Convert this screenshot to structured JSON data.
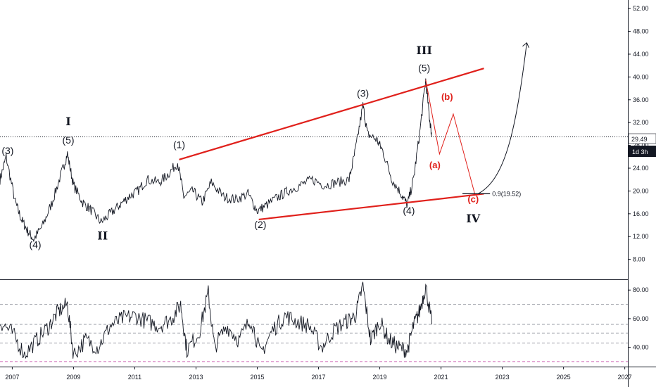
{
  "chart_data": [
    {
      "type": "line",
      "title": "",
      "xlabel": "",
      "ylabel": "",
      "x_ticks": [
        "2007",
        "2009",
        "2011",
        "2013",
        "2015",
        "2017",
        "2019",
        "2021",
        "2023",
        "2025",
        "2027"
      ],
      "xlim": [
        "2006.6",
        "2027.1"
      ],
      "y_ticks": [
        "8.00",
        "12.00",
        "16.00",
        "20.00",
        "24.00",
        "28.00",
        "32.00",
        "36.00",
        "40.00",
        "44.00",
        "48.00",
        "52.00"
      ],
      "ylim": [
        4.5,
        53.5
      ],
      "current_price": "29.49",
      "interval_badge": "1d 3h",
      "price_anchors": [
        {
          "x": 2006.6,
          "y": 22
        },
        {
          "x": 2006.8,
          "y": 26
        },
        {
          "x": 2007.1,
          "y": 18
        },
        {
          "x": 2007.3,
          "y": 15
        },
        {
          "x": 2007.5,
          "y": 13
        },
        {
          "x": 2007.7,
          "y": 11.5
        },
        {
          "x": 2008.0,
          "y": 14
        },
        {
          "x": 2008.3,
          "y": 18
        },
        {
          "x": 2008.6,
          "y": 23
        },
        {
          "x": 2008.8,
          "y": 26.5
        },
        {
          "x": 2009.0,
          "y": 21
        },
        {
          "x": 2009.3,
          "y": 18
        },
        {
          "x": 2009.6,
          "y": 16.5
        },
        {
          "x": 2009.9,
          "y": 14.5
        },
        {
          "x": 2010.2,
          "y": 16
        },
        {
          "x": 2010.5,
          "y": 17.5
        },
        {
          "x": 2010.8,
          "y": 19
        },
        {
          "x": 2011.1,
          "y": 20
        },
        {
          "x": 2011.4,
          "y": 22
        },
        {
          "x": 2011.8,
          "y": 21.5
        },
        {
          "x": 2012.1,
          "y": 23
        },
        {
          "x": 2012.4,
          "y": 25
        },
        {
          "x": 2012.6,
          "y": 19
        },
        {
          "x": 2012.9,
          "y": 20
        },
        {
          "x": 2013.2,
          "y": 18
        },
        {
          "x": 2013.5,
          "y": 21.5
        },
        {
          "x": 2013.9,
          "y": 19
        },
        {
          "x": 2014.3,
          "y": 18.5
        },
        {
          "x": 2014.7,
          "y": 19.5
        },
        {
          "x": 2015.0,
          "y": 16.5
        },
        {
          "x": 2015.3,
          "y": 17.5
        },
        {
          "x": 2015.7,
          "y": 19
        },
        {
          "x": 2016.0,
          "y": 20
        },
        {
          "x": 2016.4,
          "y": 21
        },
        {
          "x": 2016.8,
          "y": 22
        },
        {
          "x": 2017.2,
          "y": 21
        },
        {
          "x": 2017.6,
          "y": 21.5
        },
        {
          "x": 2018.0,
          "y": 22
        },
        {
          "x": 2018.2,
          "y": 27
        },
        {
          "x": 2018.45,
          "y": 35
        },
        {
          "x": 2018.6,
          "y": 30
        },
        {
          "x": 2018.9,
          "y": 29
        },
        {
          "x": 2019.1,
          "y": 27
        },
        {
          "x": 2019.4,
          "y": 22
        },
        {
          "x": 2019.7,
          "y": 19.5
        },
        {
          "x": 2019.9,
          "y": 17.5
        },
        {
          "x": 2020.1,
          "y": 22
        },
        {
          "x": 2020.3,
          "y": 30
        },
        {
          "x": 2020.5,
          "y": 39.5
        },
        {
          "x": 2020.62,
          "y": 33
        },
        {
          "x": 2020.7,
          "y": 29.5
        }
      ],
      "oscillator": {
        "y_ticks": [
          "40.00",
          "60.00",
          "80.00"
        ],
        "ylim": [
          27,
          87
        ],
        "levels": [
          30,
          43,
          50,
          56,
          70
        ],
        "anchors": [
          {
            "x": 2006.6,
            "y": 58
          },
          {
            "x": 2007.0,
            "y": 50
          },
          {
            "x": 2007.4,
            "y": 35
          },
          {
            "x": 2007.8,
            "y": 45
          },
          {
            "x": 2008.2,
            "y": 55
          },
          {
            "x": 2008.5,
            "y": 65
          },
          {
            "x": 2008.8,
            "y": 70
          },
          {
            "x": 2009.0,
            "y": 35
          },
          {
            "x": 2009.4,
            "y": 45
          },
          {
            "x": 2009.8,
            "y": 40
          },
          {
            "x": 2010.2,
            "y": 55
          },
          {
            "x": 2010.6,
            "y": 60
          },
          {
            "x": 2011.0,
            "y": 62
          },
          {
            "x": 2011.4,
            "y": 58
          },
          {
            "x": 2011.8,
            "y": 55
          },
          {
            "x": 2012.2,
            "y": 60
          },
          {
            "x": 2012.5,
            "y": 70
          },
          {
            "x": 2012.7,
            "y": 38
          },
          {
            "x": 2013.1,
            "y": 50
          },
          {
            "x": 2013.4,
            "y": 78
          },
          {
            "x": 2013.6,
            "y": 40
          },
          {
            "x": 2014.0,
            "y": 55
          },
          {
            "x": 2014.4,
            "y": 45
          },
          {
            "x": 2014.8,
            "y": 60
          },
          {
            "x": 2015.1,
            "y": 35
          },
          {
            "x": 2015.5,
            "y": 52
          },
          {
            "x": 2015.9,
            "y": 62
          },
          {
            "x": 2016.3,
            "y": 58
          },
          {
            "x": 2016.7,
            "y": 55
          },
          {
            "x": 2017.1,
            "y": 40
          },
          {
            "x": 2017.5,
            "y": 52
          },
          {
            "x": 2017.9,
            "y": 58
          },
          {
            "x": 2018.2,
            "y": 62
          },
          {
            "x": 2018.45,
            "y": 83
          },
          {
            "x": 2018.7,
            "y": 45
          },
          {
            "x": 2019.0,
            "y": 58
          },
          {
            "x": 2019.3,
            "y": 45
          },
          {
            "x": 2019.6,
            "y": 40
          },
          {
            "x": 2019.9,
            "y": 38
          },
          {
            "x": 2020.1,
            "y": 55
          },
          {
            "x": 2020.3,
            "y": 65
          },
          {
            "x": 2020.5,
            "y": 83
          },
          {
            "x": 2020.7,
            "y": 56
          }
        ]
      },
      "trendlines": [
        {
          "name": "upper",
          "x1": 2012.45,
          "y1": 25.5,
          "x2": 2022.4,
          "y2": 41.5,
          "color": "#e0201b"
        },
        {
          "name": "lower",
          "x1": 2015.05,
          "y1": 15.0,
          "x2": 2022.4,
          "y2": 19.5,
          "color": "#e0201b"
        }
      ],
      "projection_path": [
        {
          "x": 2020.5,
          "y": 39.5
        },
        {
          "x": 2020.95,
          "y": 26.5
        },
        {
          "x": 2021.4,
          "y": 33.5
        },
        {
          "x": 2022.1,
          "y": 19.52
        }
      ],
      "projection_color": "#e0201b",
      "rally_arrow": {
        "from": {
          "x": 2022.2,
          "y": 19.5
        },
        "to": {
          "x": 2023.8,
          "y": 46
        }
      },
      "fib_level": {
        "label": "0.9(19.52)",
        "value": 19.52,
        "x1": 2021.7,
        "x2": 2022.6
      },
      "wave_labels": [
        {
          "text": "(3)",
          "x": 2006.85,
          "y": 26.5,
          "style": "wave-label"
        },
        {
          "text": "(4)",
          "x": 2007.75,
          "y": 10.0,
          "style": "wave-label"
        },
        {
          "text": "I",
          "x": 2008.83,
          "y": 31.5,
          "style": "wave-roman"
        },
        {
          "text": "(5)",
          "x": 2008.83,
          "y": 28.3,
          "style": "wave-label"
        },
        {
          "text": "II",
          "x": 2009.95,
          "y": 11.5,
          "style": "wave-roman"
        },
        {
          "text": "(1)",
          "x": 2012.45,
          "y": 27.5,
          "style": "wave-label"
        },
        {
          "text": "(2)",
          "x": 2015.1,
          "y": 13.5,
          "style": "wave-label"
        },
        {
          "text": "(3)",
          "x": 2018.45,
          "y": 36.5,
          "style": "wave-label"
        },
        {
          "text": "(4)",
          "x": 2019.95,
          "y": 16.0,
          "style": "wave-label"
        },
        {
          "text": "III",
          "x": 2020.45,
          "y": 44.0,
          "style": "wave-roman"
        },
        {
          "text": "(5)",
          "x": 2020.45,
          "y": 41.0,
          "style": "wave-label"
        },
        {
          "text": "(b)",
          "x": 2021.2,
          "y": 36.0,
          "style": "wave-red"
        },
        {
          "text": "(a)",
          "x": 2020.8,
          "y": 24.0,
          "style": "wave-red"
        },
        {
          "text": "(c)",
          "x": 2022.05,
          "y": 18.0,
          "style": "wave-red"
        },
        {
          "text": "IV",
          "x": 2022.05,
          "y": 14.5,
          "style": "wave-roman"
        }
      ]
    }
  ]
}
